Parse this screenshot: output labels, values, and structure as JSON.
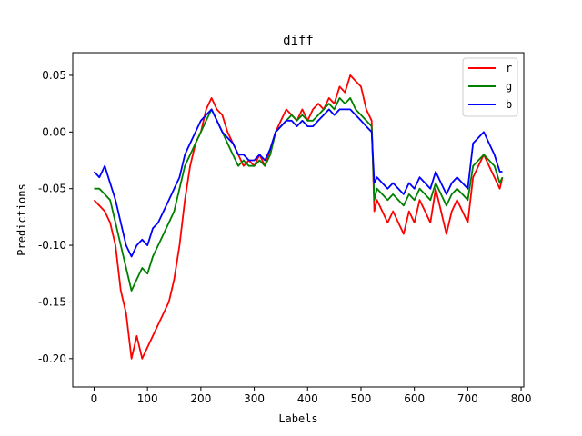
{
  "chart_data": {
    "type": "line",
    "title": "diff",
    "xlabel": "Labels",
    "ylabel": "Predictions",
    "xlim": [
      -40,
      805
    ],
    "ylim": [
      -0.225,
      0.07
    ],
    "xticks": [
      0,
      100,
      200,
      300,
      400,
      500,
      600,
      700,
      800
    ],
    "xtick_labels": [
      "0",
      "100",
      "200",
      "300",
      "400",
      "500",
      "600",
      "700",
      "800"
    ],
    "yticks": [
      -0.2,
      -0.15,
      -0.1,
      -0.05,
      0.0,
      0.05
    ],
    "ytick_labels": [
      "-0.20",
      "-0.15",
      "-0.10",
      "-0.05",
      "0.00",
      "0.05"
    ],
    "grid": false,
    "legend_position": "top-right",
    "noise_note": "series are dense noisy lines; values below are the visible trend envelope at ~10-sample resolution",
    "x": [
      0,
      10,
      20,
      30,
      40,
      50,
      60,
      70,
      80,
      90,
      100,
      110,
      120,
      130,
      140,
      150,
      160,
      170,
      180,
      190,
      200,
      210,
      220,
      230,
      240,
      250,
      260,
      270,
      280,
      290,
      300,
      310,
      320,
      330,
      340,
      350,
      360,
      370,
      380,
      390,
      400,
      410,
      420,
      430,
      440,
      450,
      460,
      470,
      480,
      490,
      500,
      510,
      520,
      525,
      530,
      540,
      550,
      560,
      570,
      580,
      590,
      600,
      610,
      620,
      630,
      640,
      650,
      660,
      670,
      680,
      690,
      700,
      710,
      720,
      730,
      740,
      750,
      760,
      765
    ],
    "series": [
      {
        "name": "r",
        "color": "#ff0000",
        "values": [
          -0.06,
          -0.065,
          -0.07,
          -0.08,
          -0.1,
          -0.14,
          -0.16,
          -0.2,
          -0.18,
          -0.2,
          -0.19,
          -0.18,
          -0.17,
          -0.16,
          -0.15,
          -0.13,
          -0.1,
          -0.06,
          -0.03,
          -0.01,
          0.0,
          0.02,
          0.03,
          0.02,
          0.015,
          0.0,
          -0.01,
          -0.02,
          -0.03,
          -0.025,
          -0.03,
          -0.02,
          -0.03,
          -0.015,
          0.0,
          0.01,
          0.02,
          0.015,
          0.01,
          0.02,
          0.01,
          0.02,
          0.025,
          0.02,
          0.03,
          0.025,
          0.04,
          0.035,
          0.05,
          0.045,
          0.04,
          0.02,
          0.01,
          -0.07,
          -0.06,
          -0.07,
          -0.08,
          -0.07,
          -0.08,
          -0.09,
          -0.07,
          -0.08,
          -0.06,
          -0.07,
          -0.08,
          -0.05,
          -0.07,
          -0.09,
          -0.07,
          -0.06,
          -0.07,
          -0.08,
          -0.04,
          -0.03,
          -0.02,
          -0.03,
          -0.04,
          -0.05,
          -0.04
        ]
      },
      {
        "name": "g",
        "color": "#008000",
        "values": [
          -0.05,
          -0.05,
          -0.055,
          -0.06,
          -0.08,
          -0.1,
          -0.12,
          -0.14,
          -0.13,
          -0.12,
          -0.125,
          -0.11,
          -0.1,
          -0.09,
          -0.08,
          -0.07,
          -0.05,
          -0.03,
          -0.02,
          -0.01,
          0.0,
          0.01,
          0.02,
          0.01,
          0.0,
          -0.01,
          -0.02,
          -0.03,
          -0.025,
          -0.03,
          -0.03,
          -0.025,
          -0.03,
          -0.02,
          0.0,
          0.005,
          0.01,
          0.015,
          0.01,
          0.015,
          0.01,
          0.01,
          0.015,
          0.02,
          0.025,
          0.02,
          0.03,
          0.025,
          0.03,
          0.02,
          0.015,
          0.01,
          0.005,
          -0.06,
          -0.05,
          -0.055,
          -0.06,
          -0.055,
          -0.06,
          -0.065,
          -0.055,
          -0.06,
          -0.05,
          -0.055,
          -0.06,
          -0.045,
          -0.055,
          -0.065,
          -0.055,
          -0.05,
          -0.055,
          -0.06,
          -0.03,
          -0.025,
          -0.02,
          -0.025,
          -0.03,
          -0.045,
          -0.04
        ]
      },
      {
        "name": "b",
        "color": "#0000ff",
        "values": [
          -0.035,
          -0.04,
          -0.03,
          -0.045,
          -0.06,
          -0.08,
          -0.1,
          -0.11,
          -0.1,
          -0.095,
          -0.1,
          -0.085,
          -0.08,
          -0.07,
          -0.06,
          -0.05,
          -0.04,
          -0.02,
          -0.01,
          0.0,
          0.01,
          0.015,
          0.02,
          0.01,
          0.0,
          -0.005,
          -0.01,
          -0.02,
          -0.02,
          -0.025,
          -0.025,
          -0.02,
          -0.025,
          -0.015,
          0.0,
          0.005,
          0.01,
          0.01,
          0.005,
          0.01,
          0.005,
          0.005,
          0.01,
          0.015,
          0.02,
          0.015,
          0.02,
          0.02,
          0.02,
          0.015,
          0.01,
          0.005,
          0.0,
          -0.045,
          -0.04,
          -0.045,
          -0.05,
          -0.045,
          -0.05,
          -0.055,
          -0.045,
          -0.05,
          -0.04,
          -0.045,
          -0.05,
          -0.035,
          -0.045,
          -0.055,
          -0.045,
          -0.04,
          -0.045,
          -0.05,
          -0.01,
          -0.005,
          0.0,
          -0.01,
          -0.02,
          -0.035,
          -0.035
        ]
      }
    ]
  }
}
